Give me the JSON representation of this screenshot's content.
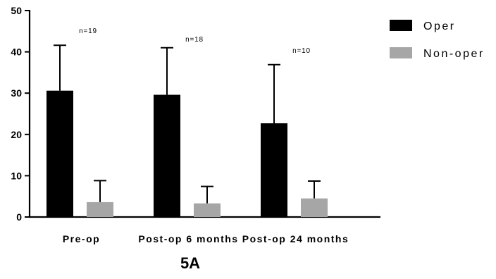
{
  "chart_data": {
    "type": "bar",
    "categories": [
      "Pre-op",
      "Post-op 6 months",
      "Post-op 24 months"
    ],
    "series": [
      {
        "name": "Oper",
        "color": "#000000",
        "values": [
          30.6,
          29.6,
          22.7
        ],
        "error_upper": [
          41.6,
          41.0,
          36.9
        ]
      },
      {
        "name": "Non-oper",
        "color": "#a6a6a6",
        "values": [
          3.6,
          3.3,
          4.5
        ],
        "error_upper": [
          8.8,
          7.4,
          8.7
        ]
      }
    ],
    "annotations": [
      "n=19",
      "n=18",
      "n=10"
    ],
    "ylim": [
      0,
      50
    ],
    "yticks": [
      "0",
      "10",
      "20",
      "30",
      "40",
      "50"
    ],
    "legend_position": "top-right",
    "grid": false,
    "panel_label": "5A",
    "xlabel": "",
    "ylabel": ""
  }
}
